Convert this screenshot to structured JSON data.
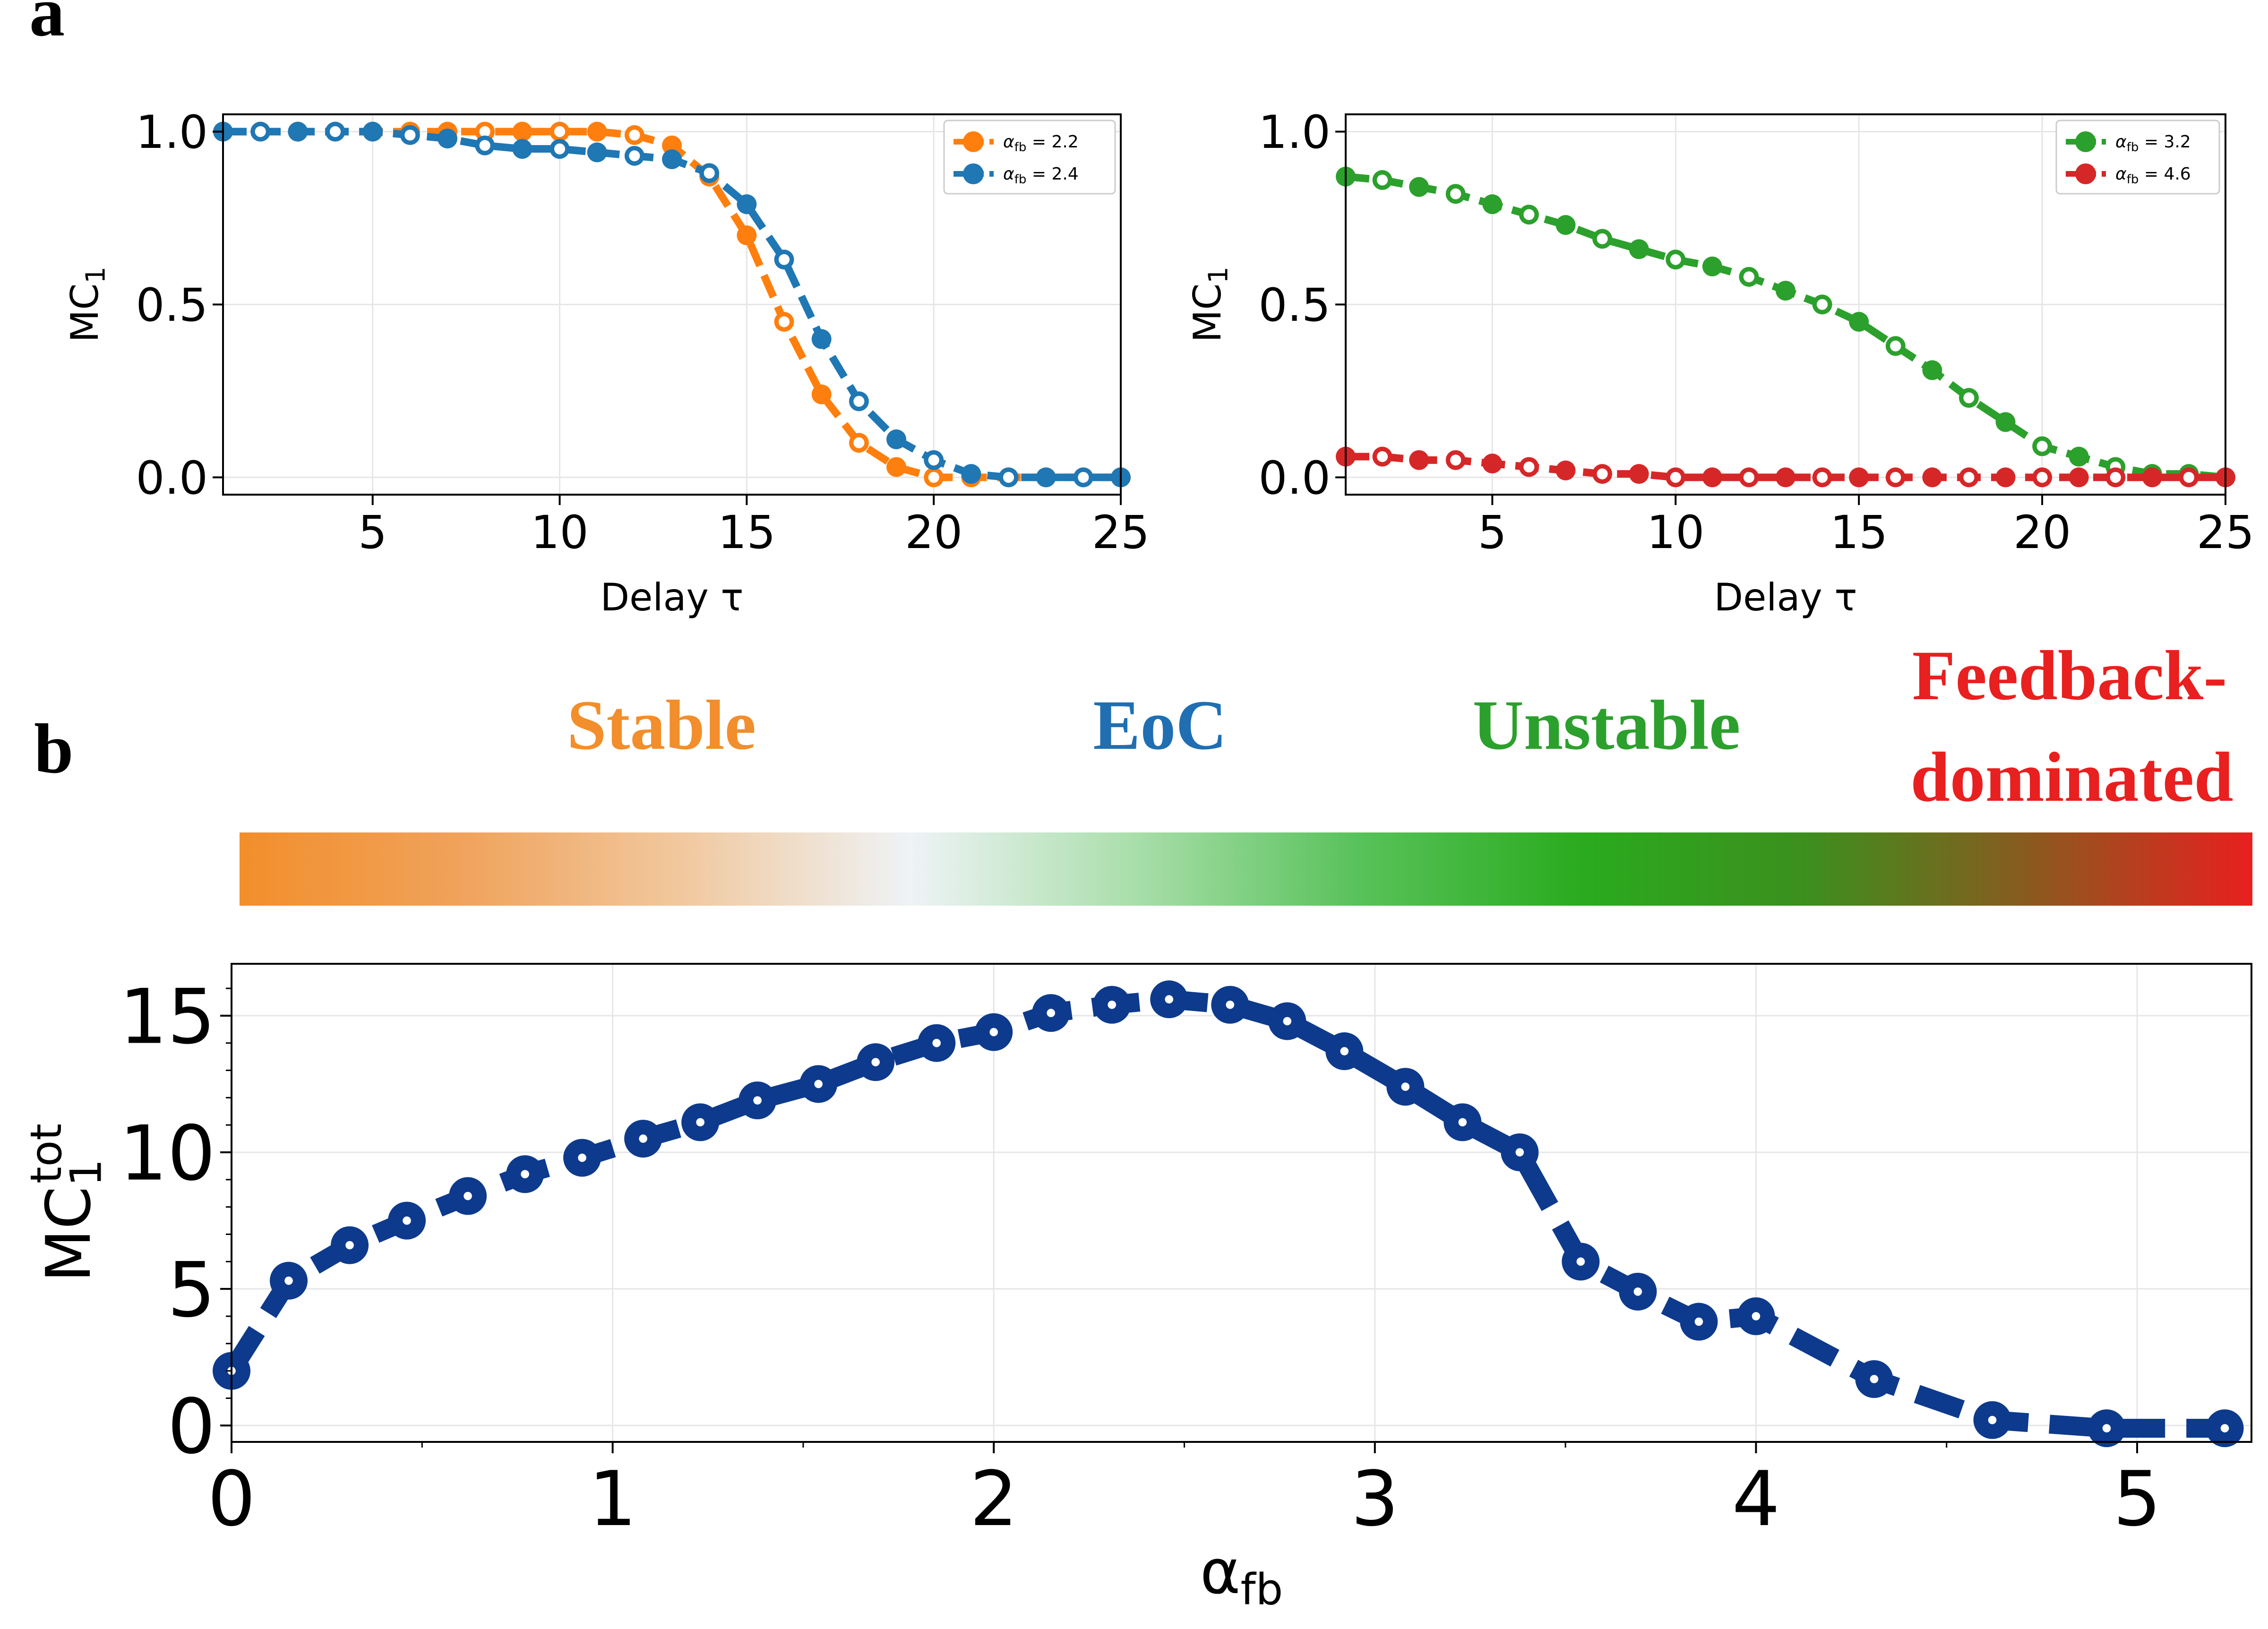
{
  "panel_labels": {
    "a": "a",
    "b": "b"
  },
  "regimes": [
    {
      "label": "Stable",
      "color": "#f28e2b"
    },
    {
      "label": "EoC",
      "color": "#1f6fb2"
    },
    {
      "label": "Unstable",
      "color": "#2ca02c"
    },
    {
      "label": "Feedback-",
      "label2": "dominated",
      "color": "#e8201f"
    }
  ],
  "colorbar": {
    "stops": [
      "#f28e2b",
      "#f0a35c",
      "#f1c9a0",
      "#eef3f6",
      "#a9deaa",
      "#58c25a",
      "#2aab1e",
      "#3c8f1e",
      "#8a5a1f",
      "#e8201f"
    ]
  },
  "chart_data": [
    {
      "type": "line",
      "title": "",
      "xlabel": "Delay τ",
      "ylabel": "MC",
      "ylabel_sub": "1",
      "xlim": [
        1,
        25
      ],
      "ylim": [
        -0.05,
        1.05
      ],
      "xticks": [
        5,
        10,
        15,
        20,
        25
      ],
      "xtick_labels": [
        "5",
        "10",
        "15",
        "20",
        "25"
      ],
      "yticks": [
        0.0,
        0.5,
        1.0
      ],
      "ytick_labels": [
        "0.0",
        "0.5",
        "1.0"
      ],
      "grid": true,
      "legend_position": "top-right",
      "x": [
        1,
        2,
        3,
        4,
        5,
        6,
        7,
        8,
        9,
        10,
        11,
        12,
        13,
        14,
        15,
        16,
        17,
        18,
        19,
        20,
        21,
        22,
        23,
        24,
        25
      ],
      "series": [
        {
          "name": "α",
          "legend_sub": "fb",
          "legend_value": " = 2.2",
          "color": "#ff7f0e",
          "values": [
            1.0,
            1.0,
            1.0,
            1.0,
            1.0,
            1.0,
            1.0,
            1.0,
            1.0,
            1.0,
            1.0,
            0.99,
            0.96,
            0.87,
            0.7,
            0.45,
            0.24,
            0.1,
            0.03,
            0.0,
            0.0,
            0.0,
            0.0,
            0.0,
            0.0
          ]
        },
        {
          "name": "α",
          "legend_sub": "fb",
          "legend_value": " = 2.4",
          "color": "#1f77b4",
          "values": [
            1.0,
            1.0,
            1.0,
            1.0,
            1.0,
            0.99,
            0.98,
            0.96,
            0.95,
            0.95,
            0.94,
            0.93,
            0.92,
            0.88,
            0.79,
            0.63,
            0.4,
            0.22,
            0.11,
            0.05,
            0.01,
            0.0,
            0.0,
            0.0,
            0.0
          ]
        }
      ]
    },
    {
      "type": "line",
      "title": "",
      "xlabel": "Delay τ",
      "ylabel": "MC",
      "ylabel_sub": "1",
      "xlim": [
        1,
        25
      ],
      "ylim": [
        -0.05,
        1.05
      ],
      "xticks": [
        5,
        10,
        15,
        20,
        25
      ],
      "xtick_labels": [
        "5",
        "10",
        "15",
        "20",
        "25"
      ],
      "yticks": [
        0.0,
        0.5,
        1.0
      ],
      "ytick_labels": [
        "0.0",
        "0.5",
        "1.0"
      ],
      "grid": true,
      "legend_position": "top-right",
      "x": [
        1,
        2,
        3,
        4,
        5,
        6,
        7,
        8,
        9,
        10,
        11,
        12,
        13,
        14,
        15,
        16,
        17,
        18,
        19,
        20,
        21,
        22,
        23,
        24,
        25
      ],
      "series": [
        {
          "name": "α",
          "legend_sub": "fb",
          "legend_value": " = 3.2",
          "color": "#2ca02c",
          "values": [
            0.87,
            0.86,
            0.84,
            0.82,
            0.79,
            0.76,
            0.73,
            0.69,
            0.66,
            0.63,
            0.61,
            0.58,
            0.54,
            0.5,
            0.45,
            0.38,
            0.31,
            0.23,
            0.16,
            0.09,
            0.06,
            0.03,
            0.01,
            0.01,
            0.0
          ]
        },
        {
          "name": "α",
          "legend_sub": "fb",
          "legend_value": " = 4.6",
          "color": "#d62728",
          "values": [
            0.06,
            0.06,
            0.05,
            0.05,
            0.04,
            0.03,
            0.02,
            0.01,
            0.01,
            0.0,
            0.0,
            0.0,
            0.0,
            0.0,
            0.0,
            0.0,
            0.0,
            0.0,
            0.0,
            0.0,
            0.0,
            0.0,
            0.0,
            0.0,
            0.0
          ]
        }
      ]
    },
    {
      "type": "line",
      "title": "",
      "xlabel": "α",
      "xlabel_sub": "fb",
      "ylabel": "MC",
      "ylabel_sub": "1",
      "ylabel_sup": "tot",
      "xlim": [
        0,
        5.3
      ],
      "ylim": [
        -0.6,
        16.9
      ],
      "xticks": [
        0,
        1,
        2,
        3,
        4,
        5
      ],
      "xtick_labels": [
        "0",
        "1",
        "2",
        "3",
        "4",
        "5"
      ],
      "yticks": [
        0,
        5,
        10,
        15
      ],
      "ytick_labels": [
        "0",
        "5",
        "10",
        "15"
      ],
      "grid": true,
      "series": [
        {
          "name": "MC1 tot",
          "color": "#0d3a8c",
          "x": [
            0.0,
            0.15,
            0.31,
            0.46,
            0.62,
            0.77,
            0.92,
            1.08,
            1.23,
            1.38,
            1.54,
            1.69,
            1.85,
            2.0,
            2.15,
            2.31,
            2.46,
            2.62,
            2.77,
            2.92,
            3.08,
            3.23,
            3.38,
            3.54,
            3.69,
            3.85,
            4.0,
            4.31,
            4.62,
            4.92,
            5.23
          ],
          "values": [
            2.0,
            5.3,
            6.6,
            7.5,
            8.4,
            9.2,
            9.8,
            10.5,
            11.1,
            11.9,
            12.5,
            13.3,
            14.0,
            14.4,
            15.1,
            15.4,
            15.6,
            15.4,
            14.8,
            13.7,
            12.4,
            11.1,
            10.0,
            6.0,
            4.9,
            3.8,
            4.0,
            1.7,
            0.2,
            -0.1,
            -0.1
          ]
        }
      ]
    }
  ]
}
